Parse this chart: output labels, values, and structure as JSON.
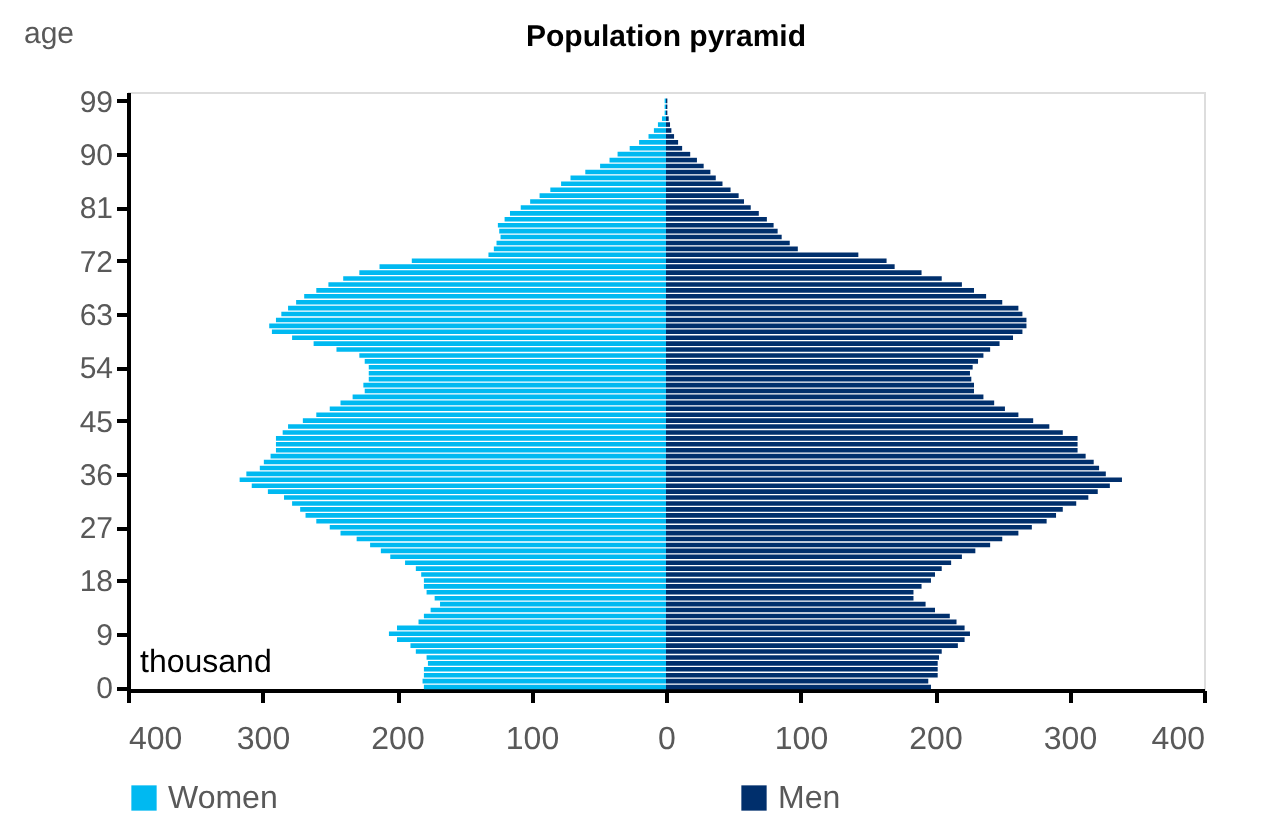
{
  "chart_data": {
    "type": "bar",
    "orientation": "horizontal",
    "title": "Population pyramid",
    "ylabel": "age",
    "annotations": [
      "thousand"
    ],
    "x": [
      0,
      1,
      2,
      3,
      4,
      5,
      6,
      7,
      8,
      9,
      10,
      11,
      12,
      13,
      14,
      15,
      16,
      17,
      18,
      19,
      20,
      21,
      22,
      23,
      24,
      25,
      26,
      27,
      28,
      29,
      30,
      31,
      32,
      33,
      34,
      35,
      36,
      37,
      38,
      39,
      40,
      41,
      42,
      43,
      44,
      45,
      46,
      47,
      48,
      49,
      50,
      51,
      52,
      53,
      54,
      55,
      56,
      57,
      58,
      59,
      60,
      61,
      62,
      63,
      64,
      65,
      66,
      67,
      68,
      69,
      70,
      71,
      72,
      73,
      74,
      75,
      76,
      77,
      78,
      79,
      80,
      81,
      82,
      83,
      84,
      85,
      86,
      87,
      88,
      89,
      90,
      91,
      92,
      93,
      94,
      95,
      96,
      97,
      98,
      99
    ],
    "series": [
      {
        "name": "Women",
        "color": "#00b9f1",
        "values": [
          -180,
          -181,
          -180,
          -180,
          -177,
          -178,
          -186,
          -190,
          -200,
          -206,
          -200,
          -184,
          -180,
          -175,
          -168,
          -172,
          -178,
          -180,
          -180,
          -182,
          -186,
          -194,
          -205,
          -212,
          -220,
          -230,
          -242,
          -250,
          -260,
          -268,
          -272,
          -278,
          -284,
          -296,
          -308,
          -317,
          -312,
          -302,
          -299,
          -294,
          -290,
          -290,
          -290,
          -285,
          -281,
          -270,
          -260,
          -250,
          -242,
          -233,
          -224,
          -225,
          -221,
          -221,
          -221,
          -224,
          -228,
          -245,
          -262,
          -278,
          -293,
          -295,
          -290,
          -286,
          -281,
          -275,
          -269,
          -260,
          -251,
          -240,
          -228,
          -213,
          -189,
          -132,
          -128,
          -126,
          -123,
          -124,
          -125,
          -120,
          -116,
          -108,
          -101,
          -94,
          -86,
          -78,
          -71,
          -60,
          -49,
          -42,
          -36,
          -27,
          -20,
          -13,
          -9,
          -6,
          -3,
          -1,
          -1,
          -1
        ]
      },
      {
        "name": "Men",
        "color": "#002f6c",
        "values": [
          197,
          195,
          202,
          202,
          202,
          203,
          205,
          217,
          222,
          226,
          222,
          216,
          211,
          200,
          193,
          184,
          184,
          190,
          197,
          200,
          205,
          212,
          220,
          230,
          241,
          250,
          262,
          272,
          283,
          290,
          295,
          305,
          314,
          321,
          330,
          339,
          327,
          322,
          318,
          312,
          306,
          306,
          306,
          295,
          285,
          273,
          262,
          252,
          244,
          236,
          229,
          229,
          227,
          226,
          228,
          232,
          236,
          241,
          248,
          258,
          265,
          268,
          268,
          265,
          262,
          250,
          238,
          229,
          220,
          205,
          190,
          170,
          164,
          143,
          98,
          92,
          86,
          83,
          80,
          75,
          69,
          63,
          58,
          54,
          48,
          42,
          37,
          33,
          28,
          23,
          18,
          12,
          9,
          6,
          4,
          3,
          2,
          1,
          1,
          1
        ]
      }
    ],
    "xlim": [
      -400,
      400
    ],
    "xticks": [
      {
        "value": -400,
        "label": "400"
      },
      {
        "value": -300,
        "label": "300"
      },
      {
        "value": -200,
        "label": "200"
      },
      {
        "value": -100,
        "label": "100"
      },
      0,
      100,
      200,
      300,
      400
    ],
    "ylim": [
      -0.5,
      100.5
    ],
    "yticks": [
      0,
      9,
      18,
      27,
      36,
      45,
      54,
      63,
      72,
      81,
      90,
      99
    ],
    "grid": false,
    "legend": "bottom",
    "stacked": true
  }
}
